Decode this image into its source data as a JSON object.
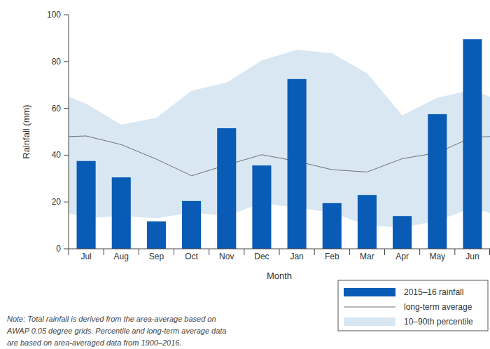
{
  "chart_data": {
    "type": "bar",
    "xlabel": "Month",
    "ylabel": "Rainfall (mm)",
    "categories": [
      "Jul",
      "Aug",
      "Sep",
      "Oct",
      "Nov",
      "Dec",
      "Jan",
      "Feb",
      "Mar",
      "Apr",
      "May",
      "Jun"
    ],
    "series": [
      {
        "name": "2015–16 rainfall",
        "type": "bar",
        "color": "#0a5bb5",
        "values": [
          37.5,
          30.5,
          11.7,
          20.4,
          51.5,
          35.6,
          72.5,
          19.5,
          23,
          14,
          57.5,
          89.5
        ]
      },
      {
        "name": "long-term average",
        "type": "line",
        "color": "#6f6f6f",
        "values": [
          48.2,
          44.5,
          38.3,
          31.2,
          35.8,
          40.2,
          37.4,
          33.8,
          32.8,
          38.5,
          41,
          47.7
        ]
      },
      {
        "name": "10–90th percentile",
        "type": "area",
        "color": "#d9e7f3",
        "values": [
          62,
          53,
          56,
          67.5,
          71,
          80.5,
          85,
          83.5,
          75,
          57,
          64.5,
          68
        ],
        "lower": [
          13,
          14,
          13,
          15.5,
          14,
          19.5,
          17.5,
          15.5,
          10,
          9,
          12,
          17.5
        ]
      }
    ],
    "ylim": [
      0,
      100
    ],
    "yticks": [
      0,
      20,
      40,
      60,
      80,
      100
    ],
    "grid": false,
    "legend": "bottom-right",
    "note": [
      "Note: Total rainfall is derived from the area-average based on",
      "AWAP 0.05 degree grids. Percentile and long-term average data",
      "are based on area-averaged data from 1900–2016."
    ]
  }
}
